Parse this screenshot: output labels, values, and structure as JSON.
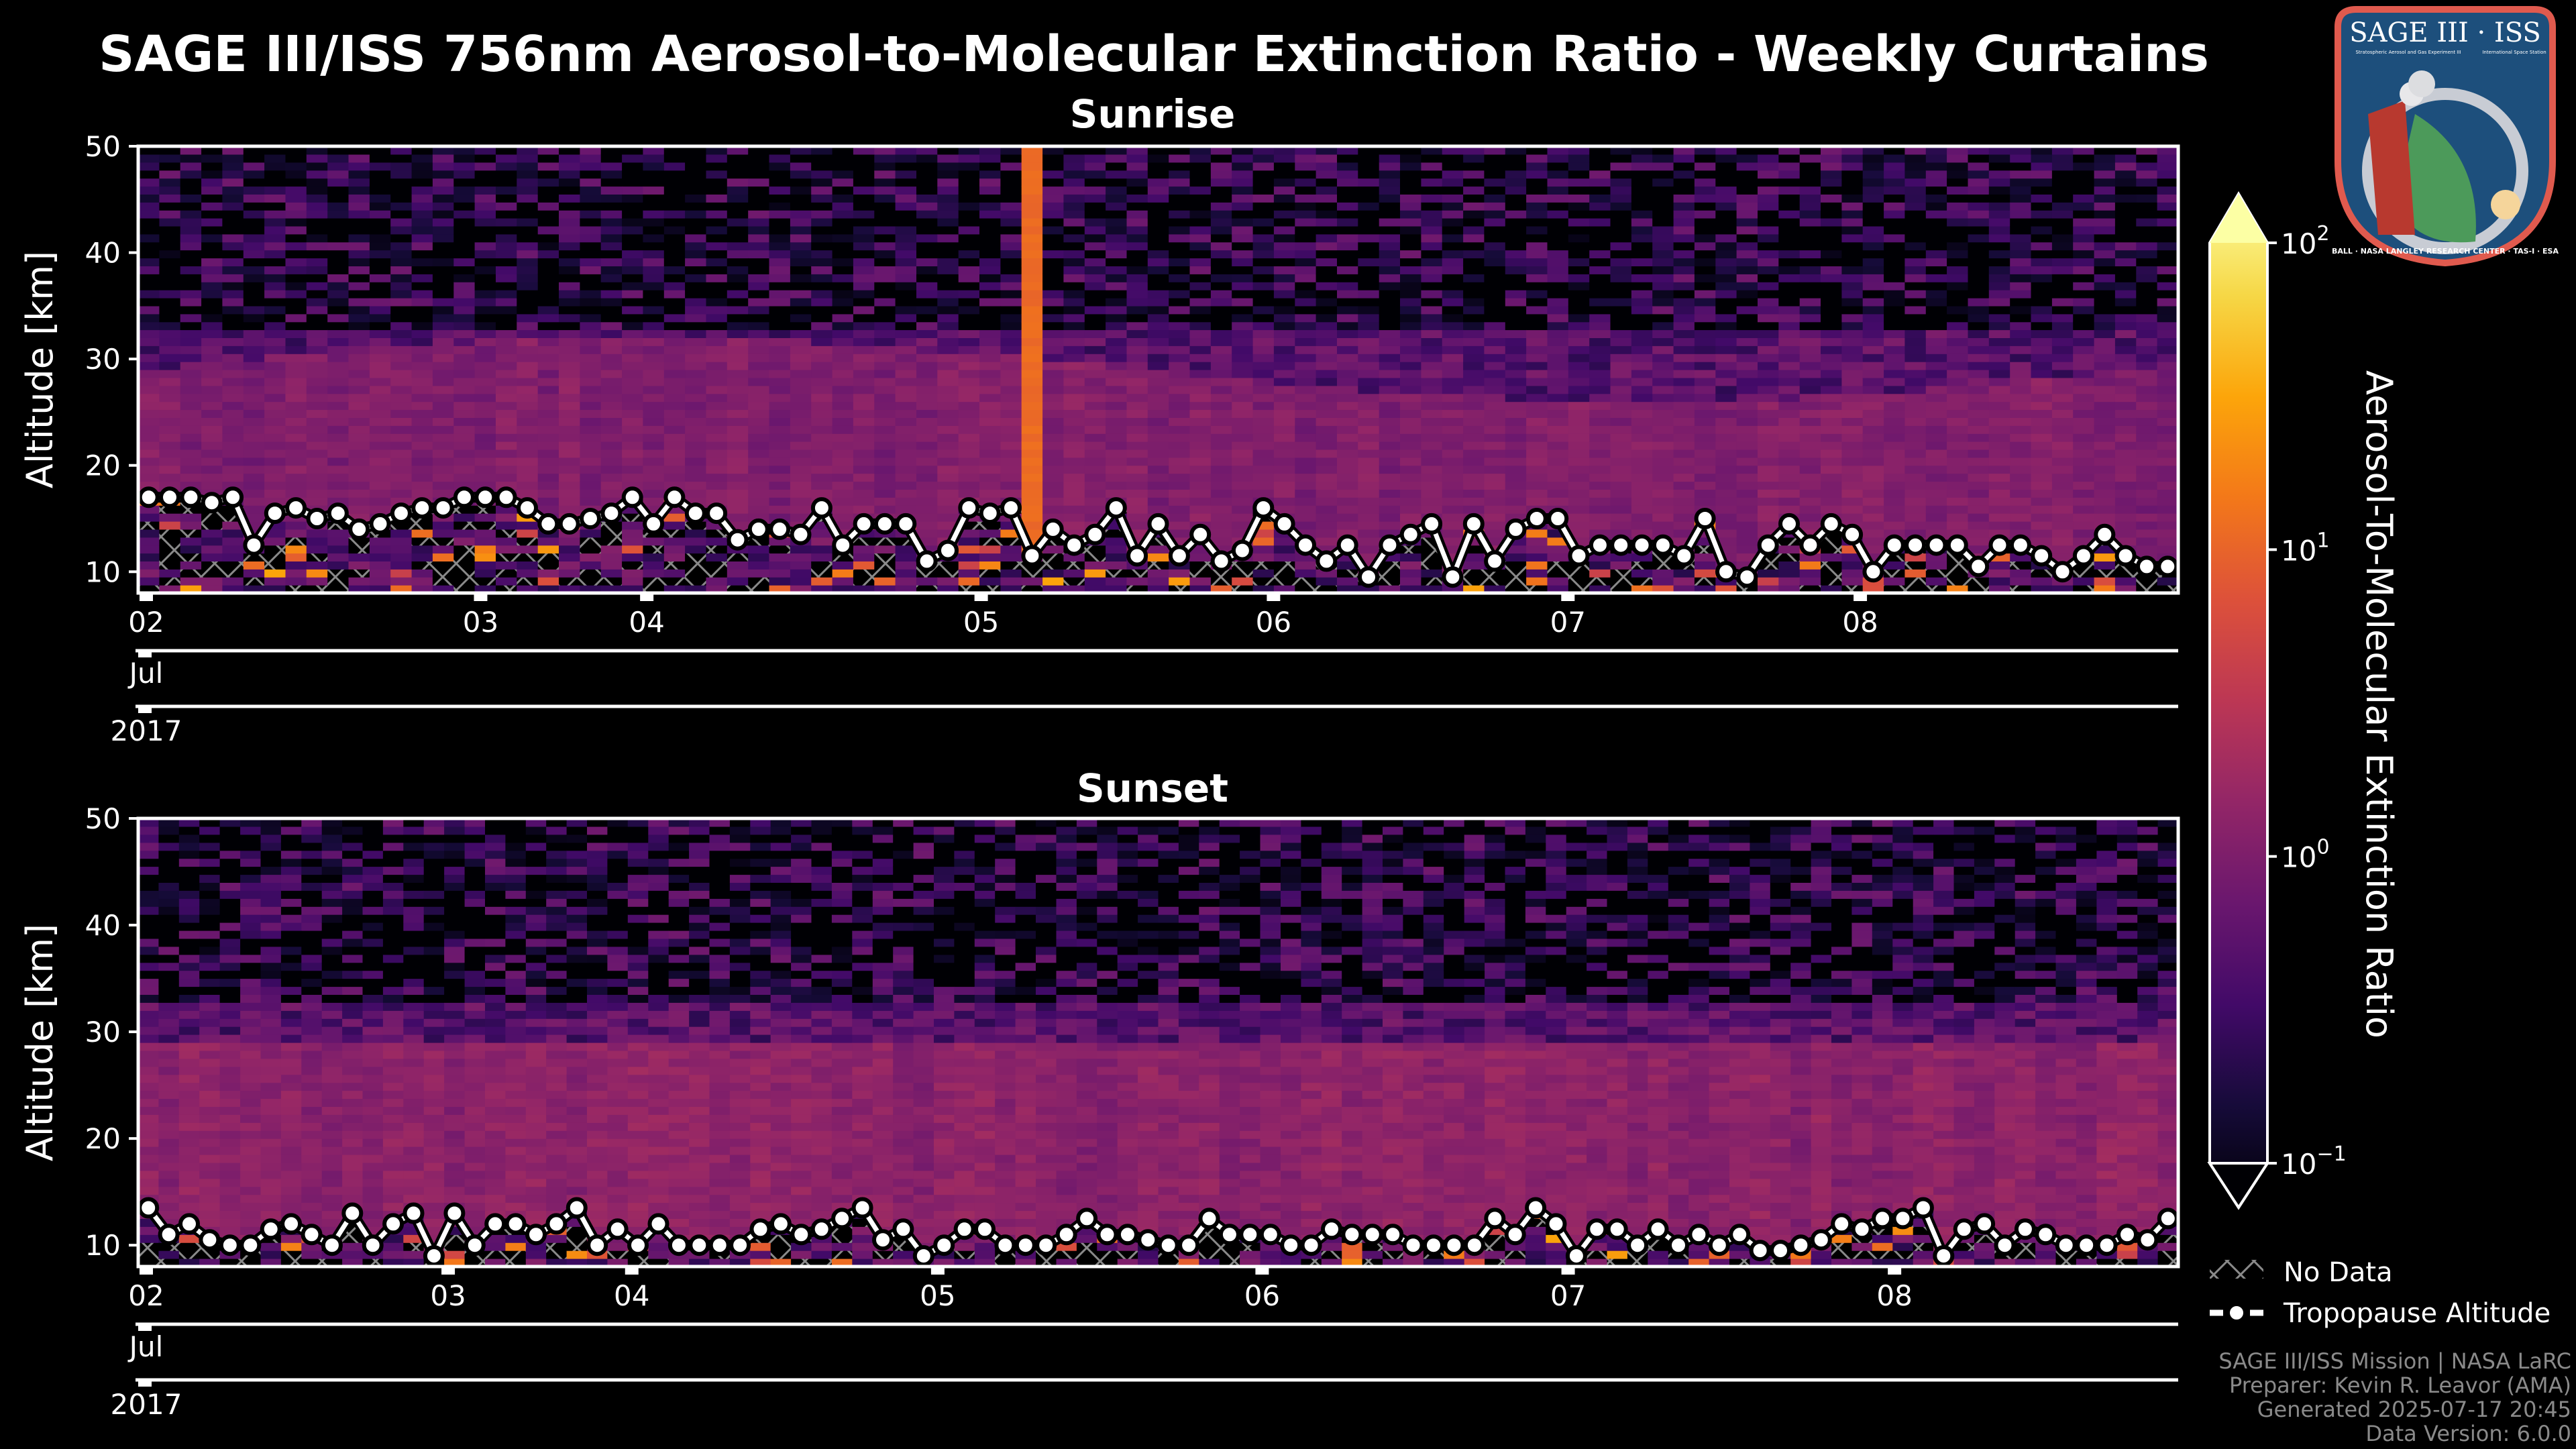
{
  "title": "SAGE III/ISS 756nm Aerosol-to-Molecular Extinction Ratio - Weekly Curtains",
  "logo": {
    "title": "SAGE III · ISS",
    "subtitle_left": "Stratospheric Aerosol and Gas Experiment III",
    "subtitle_right": "International Space Station",
    "ring_text": "BALL · NASA LANGLEY RESEARCH CENTER · TAS-I · ESA"
  },
  "chart_data": [
    {
      "type": "heatmap",
      "title": "Sunrise",
      "ylabel": "Altitude [km]",
      "ylim": [
        8,
        50
      ],
      "yticks": [
        10,
        20,
        30,
        40,
        50
      ],
      "xticks": [
        {
          "label": "02",
          "profile_index": 0
        },
        {
          "label": "03",
          "profile_index": 15.9
        },
        {
          "label": "04",
          "profile_index": 23.8
        },
        {
          "label": "05",
          "profile_index": 39.7
        },
        {
          "label": "06",
          "profile_index": 53.6
        },
        {
          "label": "07",
          "profile_index": 67.6
        },
        {
          "label": "08",
          "profile_index": 81.5
        }
      ],
      "month_label": "Jul",
      "year_label": "2017",
      "colormap": "inferno",
      "color_scale": "log",
      "plume_profile_index": 42,
      "tropopause_km": [
        17,
        17,
        17,
        16.5,
        17,
        12.5,
        15.5,
        16,
        15,
        15.5,
        14,
        14.5,
        15.5,
        16,
        16,
        17,
        17,
        17,
        16,
        14.5,
        14.5,
        15,
        15.5,
        17,
        14.5,
        17,
        15.5,
        15.5,
        13,
        14,
        14,
        13.5,
        16,
        12.5,
        14.5,
        14.5,
        14.5,
        11,
        12,
        16,
        15.5,
        16,
        11.5,
        14,
        12.5,
        13.5,
        16,
        11.5,
        14.5,
        11.5,
        13.5,
        11,
        12,
        16,
        14.5,
        12.5,
        11,
        12.5,
        9.5,
        12.5,
        13.5,
        14.5,
        9.5,
        14.5,
        11,
        14,
        15,
        15,
        11.5,
        12.5,
        12.5,
        12.5,
        12.5,
        11.5,
        15,
        10,
        9.5,
        12.5,
        14.5,
        12.5,
        14.5,
        13.5,
        10,
        12.5,
        12.5,
        12.5,
        12.5,
        10.5,
        12.5,
        12.5,
        11.5,
        10,
        11.5,
        13.5,
        11.5,
        10.5,
        10.5
      ]
    },
    {
      "type": "heatmap",
      "title": "Sunset",
      "ylabel": "Altitude [km]",
      "ylim": [
        8,
        50
      ],
      "yticks": [
        10,
        20,
        30,
        40,
        50
      ],
      "xticks": [
        {
          "label": "02",
          "profile_index": 0
        },
        {
          "label": "03",
          "profile_index": 14.8
        },
        {
          "label": "04",
          "profile_index": 23.8
        },
        {
          "label": "05",
          "profile_index": 38.8
        },
        {
          "label": "06",
          "profile_index": 54.7
        },
        {
          "label": "07",
          "profile_index": 69.7
        },
        {
          "label": "08",
          "profile_index": 85.7
        }
      ],
      "month_label": "Jul",
      "year_label": "2017",
      "colormap": "inferno",
      "color_scale": "log",
      "tropopause_km": [
        13.5,
        11,
        12,
        10.5,
        10,
        10,
        11.5,
        12,
        11,
        10,
        13,
        10,
        12,
        13,
        9,
        13,
        10,
        12,
        12,
        11,
        12,
        13.5,
        10,
        11.5,
        10,
        12,
        10,
        10,
        10,
        10,
        11.5,
        12,
        11,
        11.5,
        12.5,
        13.5,
        10.5,
        11.5,
        9,
        10,
        11.5,
        11.5,
        10,
        10,
        10,
        11,
        12.5,
        11,
        11,
        10.5,
        10,
        10,
        12.5,
        11,
        11,
        11,
        10,
        10,
        11.5,
        11,
        11,
        11,
        10,
        10,
        10,
        10,
        12.5,
        11,
        13.5,
        12,
        9,
        11.5,
        11.5,
        10,
        11.5,
        10,
        11,
        10,
        11,
        9.5,
        9.5,
        10,
        10.5,
        12,
        11.5,
        12.5,
        12.5,
        13.5,
        9,
        11.5,
        12,
        10,
        11.5,
        11,
        10,
        10,
        10,
        11,
        10.5,
        12.5
      ]
    }
  ],
  "colorbar": {
    "label": "Aerosol-To-Molecular Extinction Ratio",
    "range": [
      0.1,
      100
    ],
    "ticks": [
      {
        "base": "10",
        "exp": "2",
        "value": 100
      },
      {
        "base": "10",
        "exp": "1",
        "value": 10
      },
      {
        "base": "10",
        "exp": "0",
        "value": 1
      },
      {
        "base": "10",
        "exp": "−1",
        "value": 0.1
      }
    ]
  },
  "legend": {
    "no_data": "No Data",
    "tropopause": "Tropopause Altitude"
  },
  "footer": [
    "SAGE III/ISS Mission | NASA LaRC",
    "Preparer: Kevin R. Leavor (AMA)",
    "Generated 2025-07-17 20:45",
    "Data Version: 6.0.0"
  ],
  "colors": {
    "background": "#000000",
    "foreground": "#ffffff",
    "hatch": "#8a8a8a",
    "footer": "#8a8a8a"
  }
}
